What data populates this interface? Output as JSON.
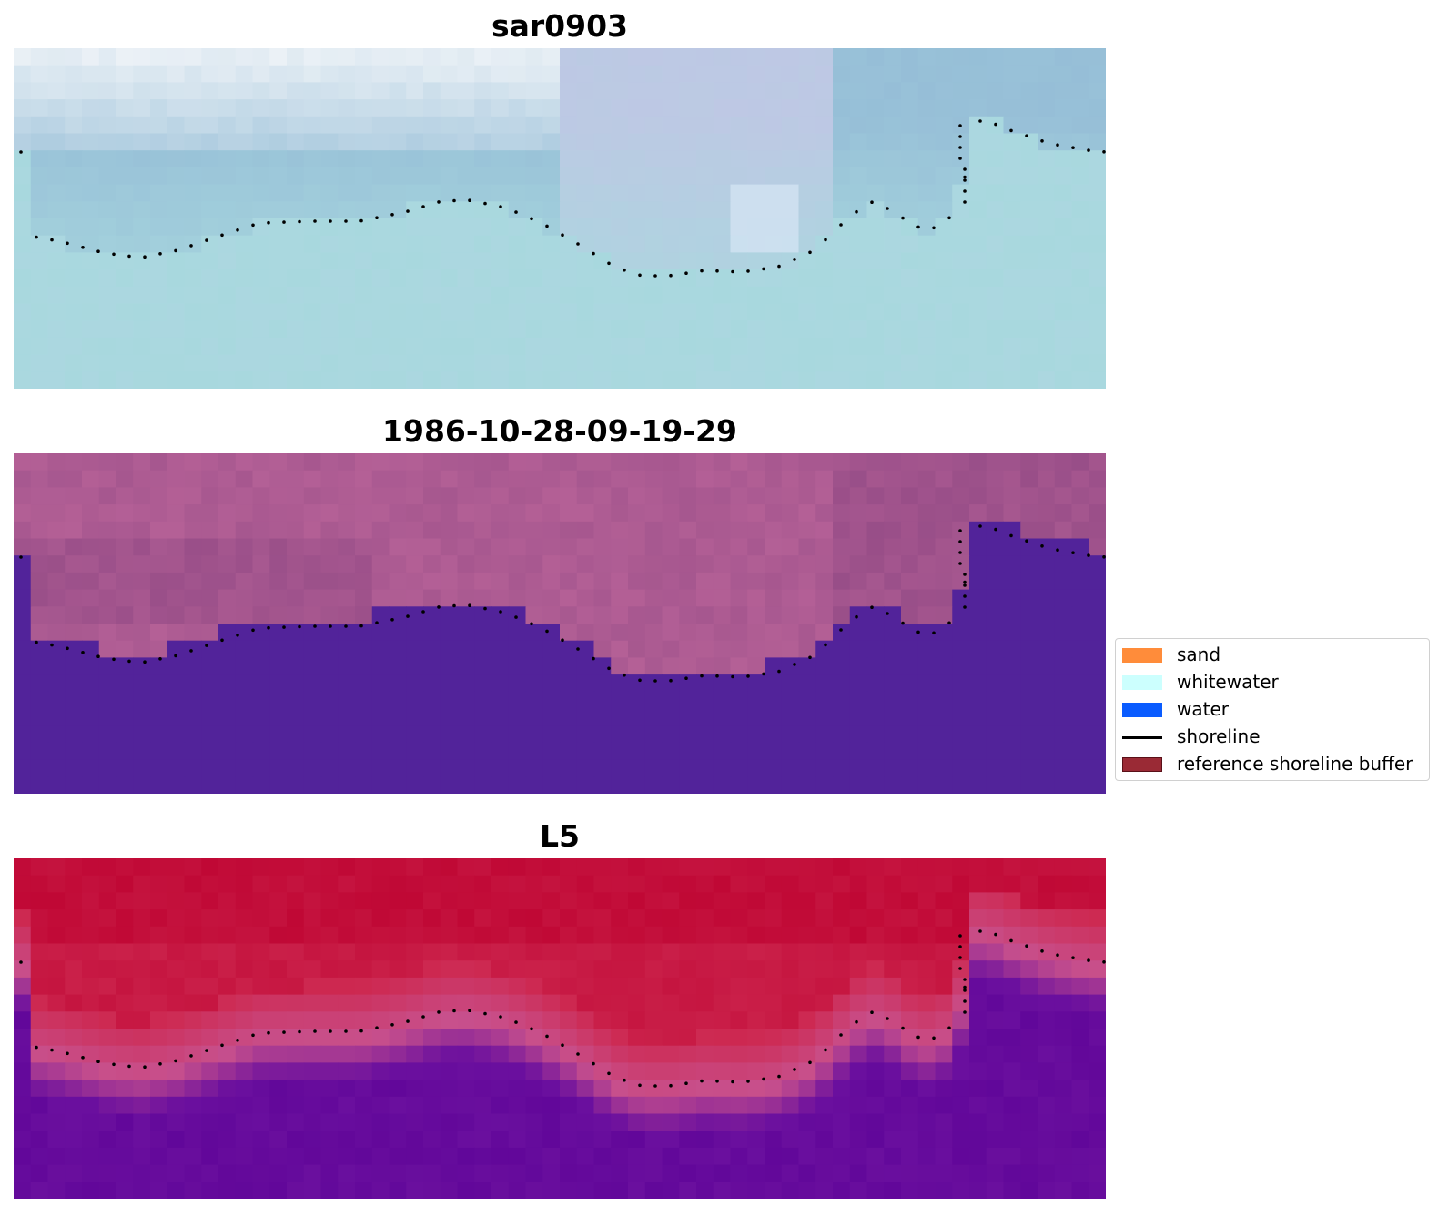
{
  "panels": [
    {
      "title": "sar0903"
    },
    {
      "title": "1986-10-28-09-19-29"
    },
    {
      "title": "L5"
    }
  ],
  "legend": {
    "items": [
      {
        "label": "sand",
        "color": "#ff8c3a",
        "kind": "patch"
      },
      {
        "label": "whitewater",
        "color": "#ccfffe",
        "kind": "patch"
      },
      {
        "label": "water",
        "color": "#0a5cff",
        "kind": "patch"
      },
      {
        "label": "shoreline",
        "color": "#000000",
        "kind": "line"
      },
      {
        "label": "reference shoreline buffer",
        "color": "#9a2a35",
        "kind": "patch"
      }
    ]
  },
  "chart_data": [
    {
      "type": "heatmap",
      "title": "sar0903"
    },
    {
      "type": "heatmap",
      "title": "1986-10-28-09-19-29"
    },
    {
      "type": "heatmap",
      "title": "L5"
    }
  ],
  "colors": {
    "sar_sky": "#a6c8dc",
    "sar_land": "#a9dbe0",
    "class_land": "#b45f97",
    "class_water": "#52239a",
    "index_high": "#c00835",
    "index_low": "#6a0f9e"
  }
}
